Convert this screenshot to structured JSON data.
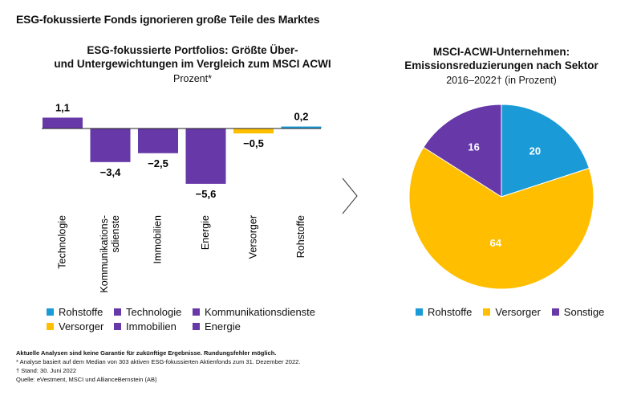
{
  "title": "ESG-fokussierte Fonds ignorieren große Teile des Marktes",
  "colors": {
    "purple": "#6638a8",
    "yellow": "#ffbf00",
    "blue": "#1a9bd7"
  },
  "chart_data": [
    {
      "type": "bar",
      "title": "ESG-fokussierte Portfolios: Größte Über- und Untergewichtungen im Vergleich zum MSCI ACWI",
      "title_line1": "ESG-fokussierte Portfolios: Größte Über-",
      "title_line2": "und Untergewichtungen im Vergleich zum MSCI ACWI",
      "subtitle": "Prozent*",
      "categories": [
        "Technologie",
        "Kommunikations-\nsdienste",
        "Immobilien",
        "Energie",
        "Versorger",
        "Rohstoffe"
      ],
      "values": [
        1.1,
        -3.4,
        -2.5,
        -5.6,
        -0.5,
        0.2
      ],
      "value_labels": [
        "1,1",
        "−3,4",
        "−2,5",
        "−5,6",
        "−0,5",
        "0,2"
      ],
      "bar_colors": [
        "#6638a8",
        "#6638a8",
        "#6638a8",
        "#6638a8",
        "#ffbf00",
        "#1a9bd7"
      ],
      "legend": [
        {
          "label": "Rohstoffe",
          "color": "#1a9bd7"
        },
        {
          "label": "Technologie",
          "color": "#6638a8"
        },
        {
          "label": "Kommunikationsdienste",
          "color": "#6638a8"
        },
        {
          "label": "Versorger",
          "color": "#ffbf00"
        },
        {
          "label": "Immobilien",
          "color": "#6638a8"
        },
        {
          "label": "Energie",
          "color": "#6638a8"
        }
      ]
    },
    {
      "type": "pie",
      "title_line1": "MSCI-ACWI-Unternehmen:",
      "title_line2": "Emissionsreduzierungen nach Sektor",
      "subtitle": "2016–2022† (in Prozent)",
      "slices": [
        {
          "label": "Rohstoffe",
          "value": 20,
          "color": "#1a9bd7"
        },
        {
          "label": "Versorger",
          "value": 64,
          "color": "#ffbf00"
        },
        {
          "label": "Sonstige",
          "value": 16,
          "color": "#6638a8"
        }
      ]
    }
  ],
  "footnotes": [
    "Aktuelle Analysen sind keine Garantie für zukünftige Ergebnisse. Rundungsfehler möglich.",
    "* Analyse basiert auf dem Median von 303 aktiven ESG-fokussierten Aktienfonds zum 31. Dezember 2022.",
    "† Stand: 30. Juni 2022",
    "Quelle: eVestment, MSCI und AllianceBernstein (AB)"
  ]
}
